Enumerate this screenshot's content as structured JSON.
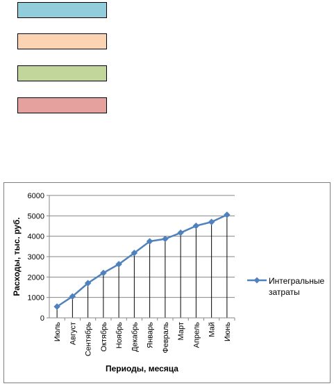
{
  "swatches": [
    {
      "color": "#92cddc"
    },
    {
      "color": "#fbd4b4"
    },
    {
      "color": "#c2d69b"
    },
    {
      "color": "#e5a19d"
    }
  ],
  "chart_data": {
    "type": "line",
    "categories": [
      "Июль",
      "Август",
      "Сентябрь",
      "Октябрь",
      "Ноябрь",
      "Декабрь",
      "Январь",
      "Февраль",
      "Март",
      "Апрель",
      "Май",
      "Июнь"
    ],
    "series": [
      {
        "name": "Интегральные затраты",
        "values": [
          550,
          1050,
          1700,
          2200,
          2630,
          3180,
          3750,
          3870,
          4170,
          4510,
          4700,
          5050
        ],
        "color": "#4f81bd"
      }
    ],
    "xlabel": "Периоды, месяца",
    "ylabel": "Расходы, тыс. руб.",
    "ylim": [
      0,
      6000
    ],
    "yticks": [
      "0",
      "1000",
      "2000",
      "3000",
      "4000",
      "5000",
      "6000"
    ],
    "grid": "horizontal",
    "drop_lines": true,
    "legend_lines": [
      "Интегральные",
      "затраты"
    ],
    "legend_position": "right"
  }
}
